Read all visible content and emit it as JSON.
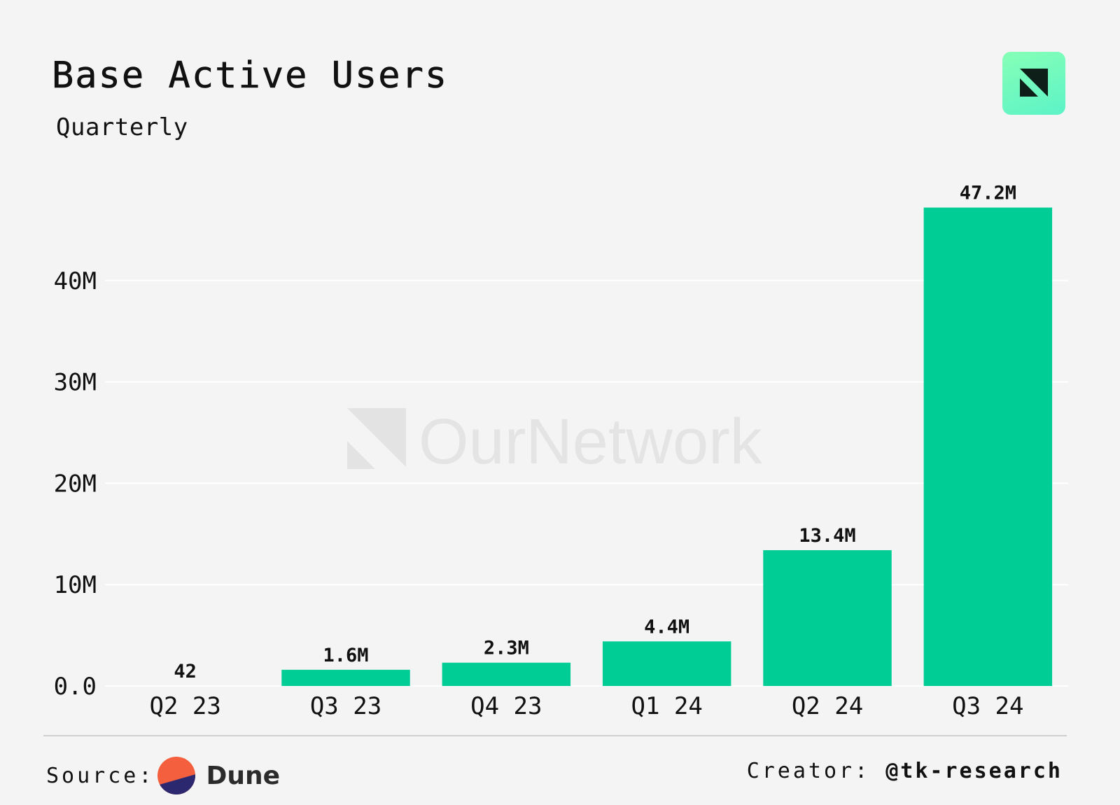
{
  "header": {
    "title": "Base Active Users",
    "subtitle": "Quarterly",
    "logo_icon": "ournetwork-logo-icon"
  },
  "watermark": {
    "text": "OurNetwork",
    "icon": "ournetwork-watermark-icon"
  },
  "chart_data": {
    "type": "bar",
    "title": "Base Active Users",
    "subtitle": "Quarterly",
    "categories": [
      "Q2 23",
      "Q3 23",
      "Q4 23",
      "Q1 24",
      "Q2 24",
      "Q3 24"
    ],
    "values": [
      42,
      1600000,
      2300000,
      4400000,
      13400000,
      47200000
    ],
    "data_labels": [
      "42",
      "1.6M",
      "2.3M",
      "4.4M",
      "13.4M",
      "47.2M"
    ],
    "yticks": [
      0,
      10000000,
      20000000,
      30000000,
      40000000
    ],
    "ytick_labels": [
      "0.0",
      "10M",
      "20M",
      "30M",
      "40M"
    ],
    "ylim": [
      0,
      50000000
    ],
    "xlabel": "",
    "ylabel": "",
    "grid": true,
    "bar_color": "#00cc96",
    "grid_color": "#ffffff"
  },
  "footer": {
    "source_label": "Source:",
    "source_name": "Dune",
    "source_icon": "dune-logo-icon",
    "creator_label": "Creator:",
    "creator_handle": "@tk-research"
  }
}
